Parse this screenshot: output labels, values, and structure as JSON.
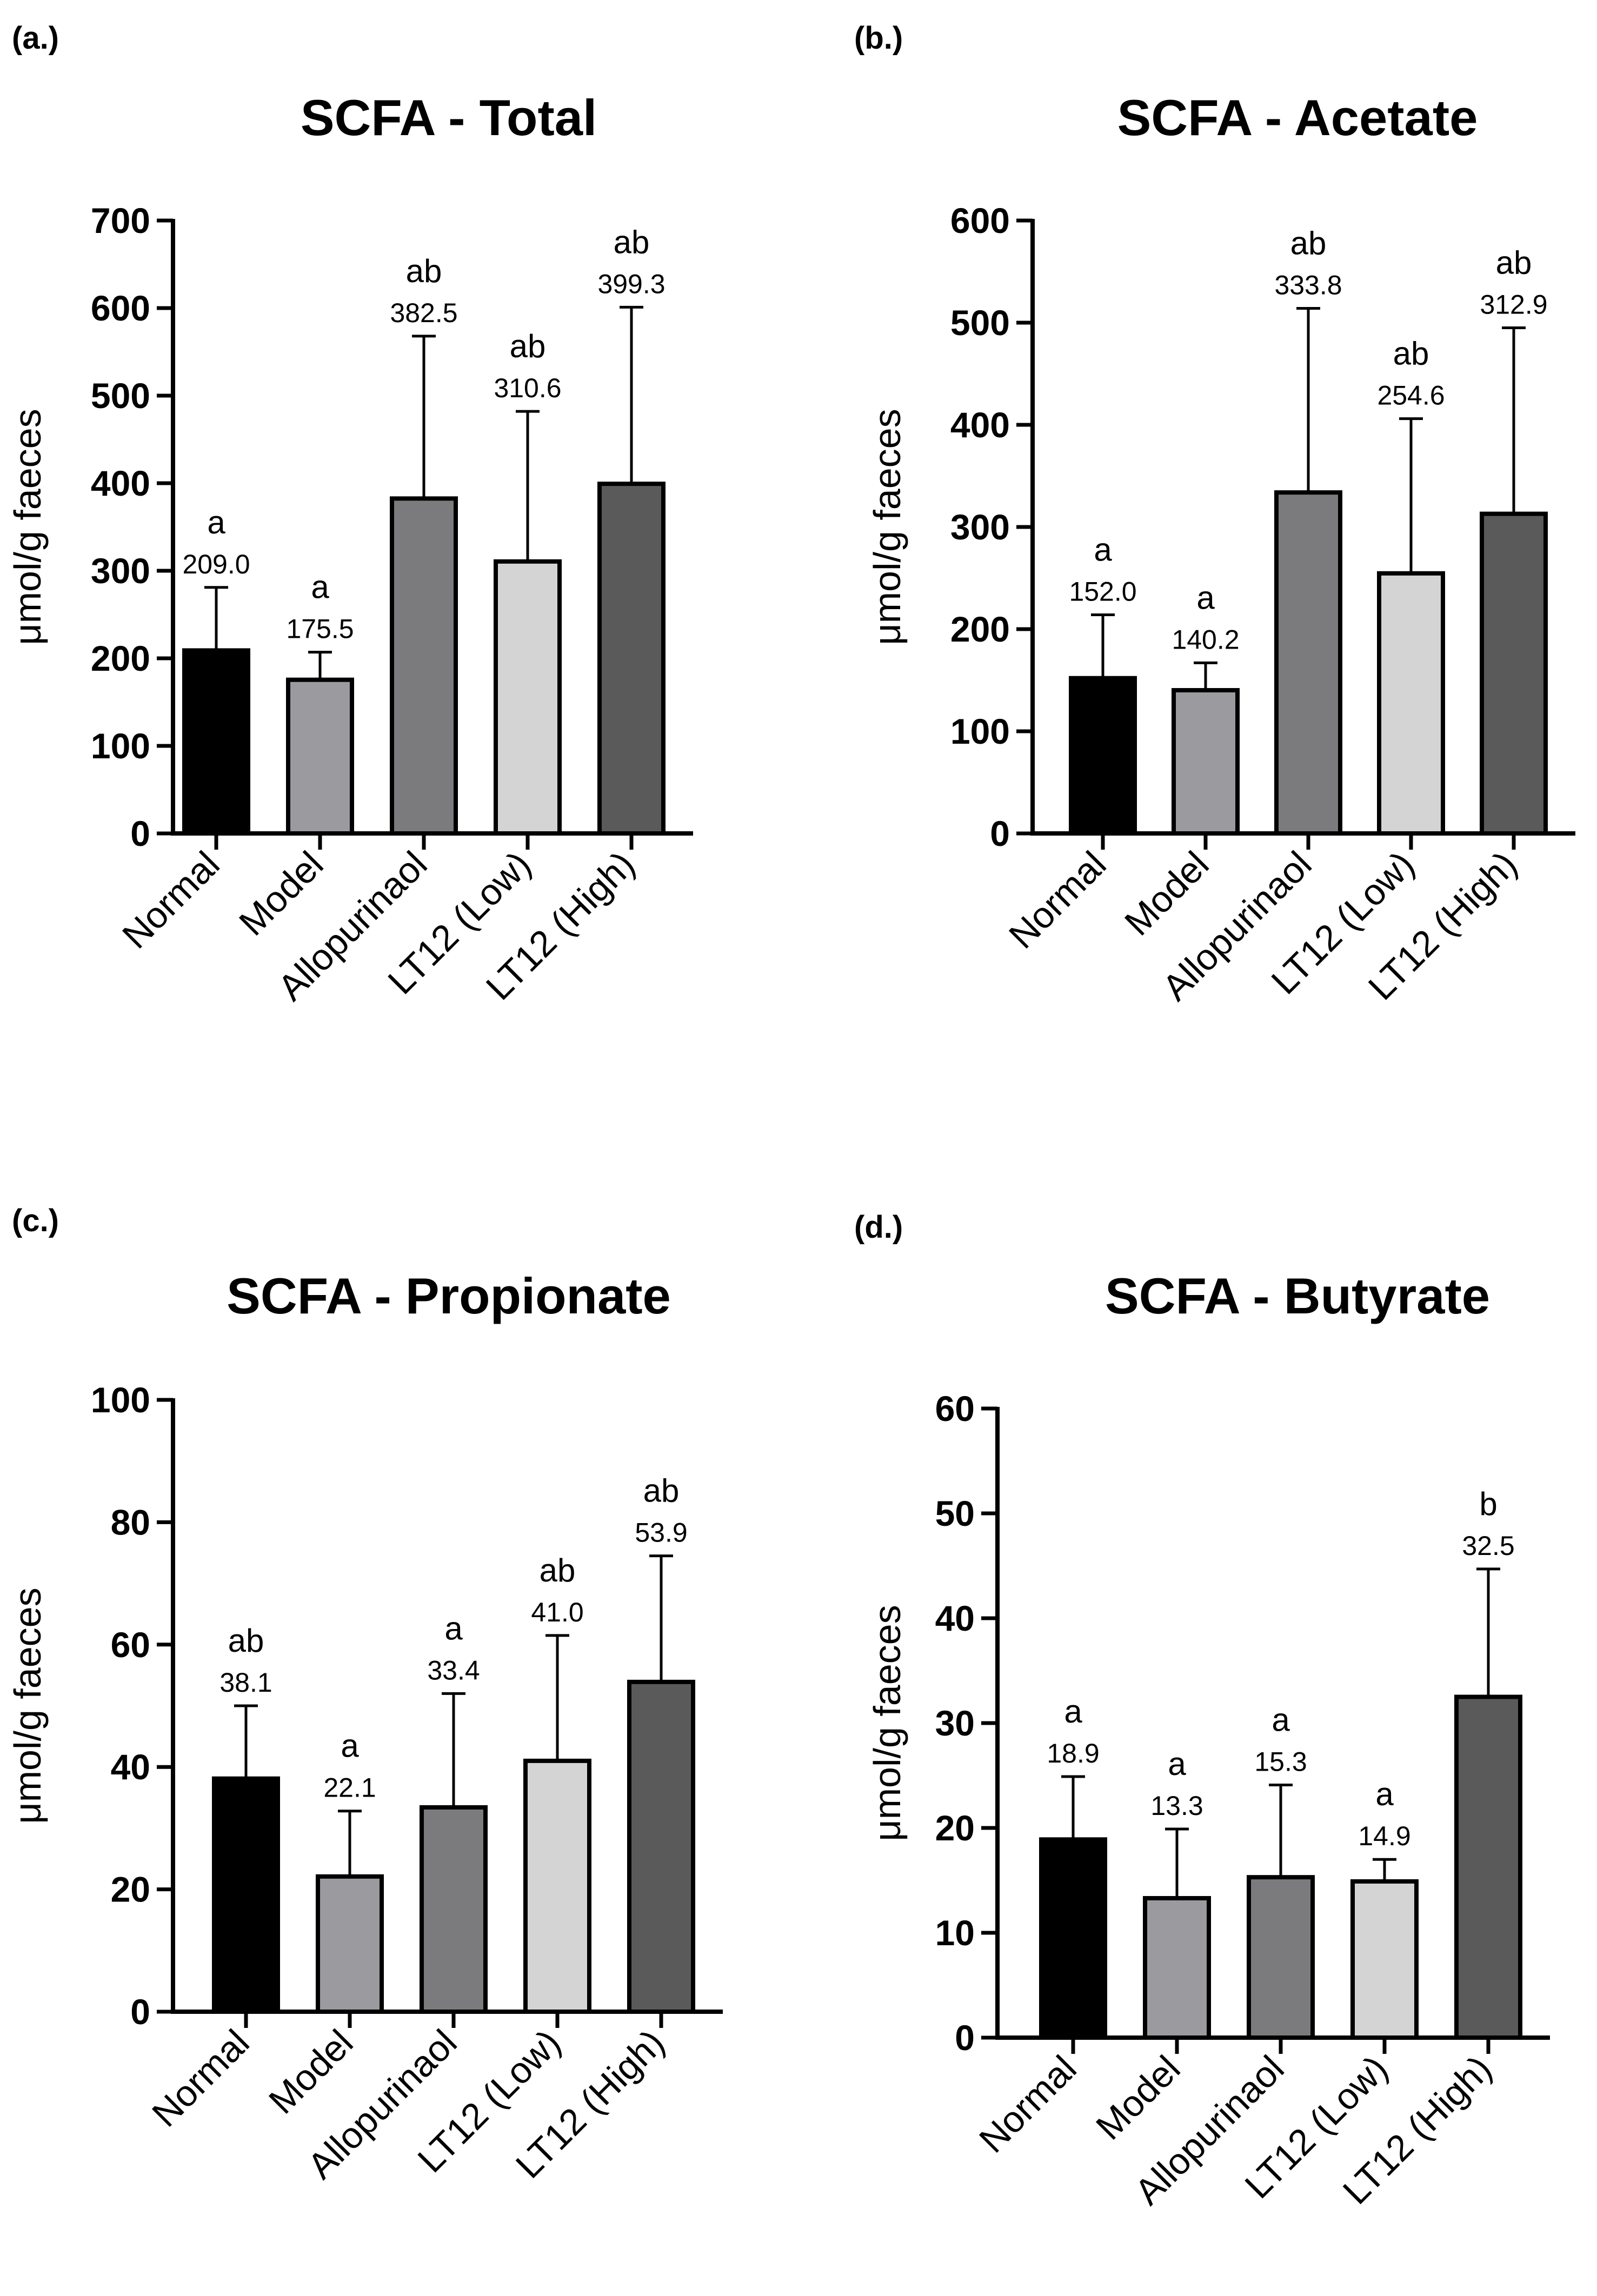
{
  "chart_data": [
    {
      "type": "bar",
      "panel_label": "(a.)",
      "title": "SCFA - Total",
      "ylabel": "μmol/g faeces",
      "xlabel": "",
      "categories": [
        "Normal",
        "Model",
        "Allopurinaol",
        "LT12 (Low)",
        "LT12 (High)"
      ],
      "values": [
        209.0,
        175.5,
        382.5,
        310.6,
        399.3
      ],
      "value_labels": [
        "209.0",
        "175.5",
        "382.5",
        "310.6",
        "399.3"
      ],
      "error_upper": [
        281,
        207,
        568,
        482,
        601
      ],
      "significance": [
        "a",
        "a",
        "ab",
        "ab",
        "ab"
      ],
      "ylim": [
        0,
        700
      ],
      "yticks": [
        0,
        100,
        200,
        300,
        400,
        500,
        600,
        700
      ],
      "ytick_labels": [
        "0",
        "100",
        "200",
        "300",
        "400",
        "500",
        "600",
        "700"
      ],
      "bar_colors": [
        "#000000",
        "#9a9a9f",
        "#7b7b7d",
        "#d4d4d4",
        "#5a5a5a"
      ],
      "grid": false
    },
    {
      "type": "bar",
      "panel_label": "(b.)",
      "title": "SCFA - Acetate",
      "ylabel": "μmol/g faeces",
      "xlabel": "",
      "categories": [
        "Normal",
        "Model",
        "Allopurinaol",
        "LT12 (Low)",
        "LT12 (High)"
      ],
      "values": [
        152.0,
        140.2,
        333.8,
        254.6,
        312.9
      ],
      "value_labels": [
        "152.0",
        "140.2",
        "333.8",
        "254.6",
        "312.9"
      ],
      "error_upper": [
        214,
        167,
        514,
        406,
        495
      ],
      "significance": [
        "a",
        "a",
        "ab",
        "ab",
        "ab"
      ],
      "ylim": [
        0,
        600
      ],
      "yticks": [
        0,
        100,
        200,
        300,
        400,
        500,
        600
      ],
      "ytick_labels": [
        "0",
        "100",
        "200",
        "300",
        "400",
        "500",
        "600"
      ],
      "bar_colors": [
        "#000000",
        "#9a9a9f",
        "#7b7b7d",
        "#d4d4d4",
        "#5a5a5a"
      ],
      "grid": false
    },
    {
      "type": "bar",
      "panel_label": "(c.)",
      "title": "SCFA - Propionate",
      "ylabel": "μmol/g faeces",
      "xlabel": "",
      "categories": [
        "Normal",
        "Model",
        "Allopurinaol",
        "LT12 (Low)",
        "LT12 (High)"
      ],
      "values": [
        38.1,
        22.1,
        33.4,
        41.0,
        53.9
      ],
      "value_labels": [
        "38.1",
        "22.1",
        "33.4",
        "41.0",
        "53.9"
      ],
      "error_upper": [
        50,
        32.8,
        52,
        61.5,
        74.5
      ],
      "significance": [
        "ab",
        "a",
        "a",
        "ab",
        "ab"
      ],
      "ylim": [
        0,
        100
      ],
      "yticks": [
        0,
        20,
        40,
        60,
        80,
        100
      ],
      "ytick_labels": [
        "0",
        "20",
        "40",
        "60",
        "80",
        "100"
      ],
      "bar_colors": [
        "#000000",
        "#9a9a9f",
        "#7b7b7d",
        "#d4d4d4",
        "#5a5a5a"
      ],
      "grid": false
    },
    {
      "type": "bar",
      "panel_label": "(d.)",
      "title": "SCFA - Butyrate",
      "ylabel": "μmol/g faeces",
      "xlabel": "",
      "categories": [
        "Normal",
        "Model",
        "Allopurinaol",
        "LT12 (Low)",
        "LT12 (High)"
      ],
      "values": [
        18.9,
        13.3,
        15.3,
        14.9,
        32.5
      ],
      "value_labels": [
        "18.9",
        "13.3",
        "15.3",
        "14.9",
        "32.5"
      ],
      "error_upper": [
        24.9,
        19.9,
        24.1,
        17.0,
        44.7
      ],
      "significance": [
        "a",
        "a",
        "a",
        "a",
        "b"
      ],
      "ylim": [
        0,
        60
      ],
      "yticks": [
        0,
        10,
        20,
        30,
        40,
        50,
        60
      ],
      "ytick_labels": [
        "0",
        "10",
        "20",
        "30",
        "40",
        "50",
        "60"
      ],
      "bar_colors": [
        "#000000",
        "#9a9a9f",
        "#7b7b7d",
        "#d4d4d4",
        "#5a5a5a"
      ],
      "grid": false
    }
  ]
}
